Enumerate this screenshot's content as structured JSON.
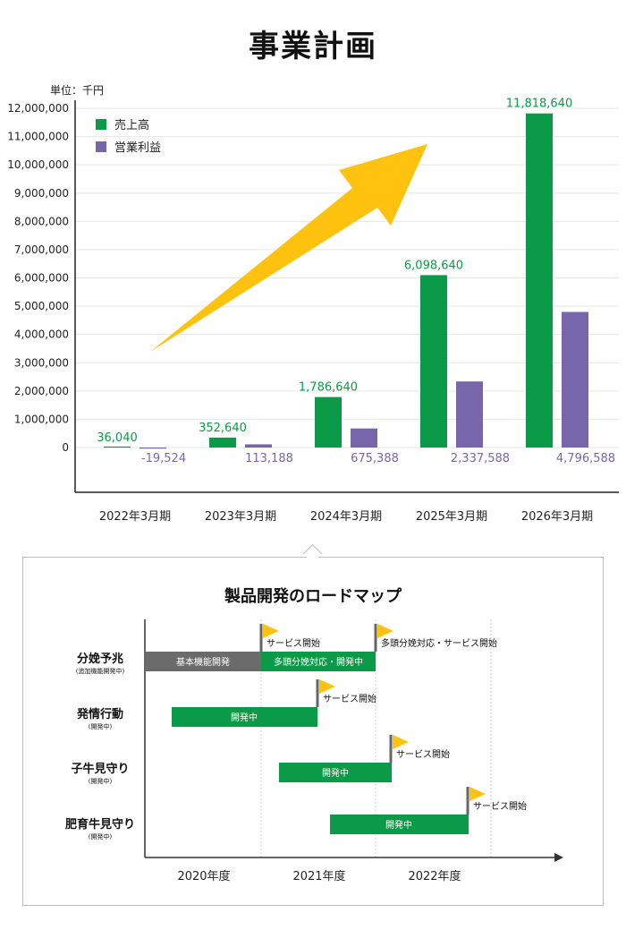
{
  "page": {
    "title": "事業計画",
    "unit": "単位：千円"
  },
  "colors": {
    "sales": "#0b9a47",
    "profit": "#7766aa",
    "arrow": "#ffc20e",
    "dev_gray": "#6b6b6b",
    "flag": "#ffc20e"
  },
  "chart_data": {
    "type": "bar",
    "categories": [
      "2022年3月期",
      "2023年3月期",
      "2024年3月期",
      "2025年3月期",
      "2026年3月期"
    ],
    "series": [
      {
        "name": "売上高",
        "values": [
          36040,
          352640,
          1786640,
          6098640,
          11818640
        ],
        "labels": [
          "36,040",
          "352,640",
          "1,786,640",
          "6,098,640",
          "11,818,640"
        ]
      },
      {
        "name": "営業利益",
        "values": [
          -19524,
          113188,
          675388,
          2337588,
          4796588
        ],
        "labels": [
          "-19,524",
          "113,188",
          "675,388",
          "2,337,588",
          "4,796,588"
        ]
      }
    ],
    "yticks": [
      "12,000,000",
      "11,000,000",
      "10,000,000",
      "9,000,000",
      "8,000,000",
      "7,000,000",
      "6,000,000",
      "5,000,000",
      "4,000,000",
      "3,000,000",
      "2,000,000",
      "1,000,000",
      "0"
    ],
    "ylim": [
      0,
      12000000
    ],
    "grid": true,
    "legend": "top-left"
  },
  "roadmap": {
    "title": "製品開発のロードマップ",
    "years": [
      "2020年度",
      "2021年度",
      "2022年度"
    ],
    "rows": [
      {
        "name": "分娩予兆",
        "sub": "(追加機能開発中)"
      },
      {
        "name": "発情行動",
        "sub": "(開発中)"
      },
      {
        "name": "子牛見守り",
        "sub": "(開発中)"
      },
      {
        "name": "肥育牛見守り",
        "sub": "(開発中)"
      }
    ],
    "bars": [
      {
        "label": "基本機能開発",
        "color": "gray"
      },
      {
        "label": "多頭分娩対応・開発中",
        "color": "green"
      },
      {
        "label": "開発中",
        "color": "green"
      },
      {
        "label": "開発中",
        "color": "green"
      },
      {
        "label": "開発中",
        "color": "green"
      }
    ],
    "flags": [
      {
        "label": "サービス開始"
      },
      {
        "label": "多頭分娩対応・サービス開始"
      },
      {
        "label": "サービス開始"
      },
      {
        "label": "サービス開始"
      },
      {
        "label": "サービス開始"
      }
    ]
  }
}
